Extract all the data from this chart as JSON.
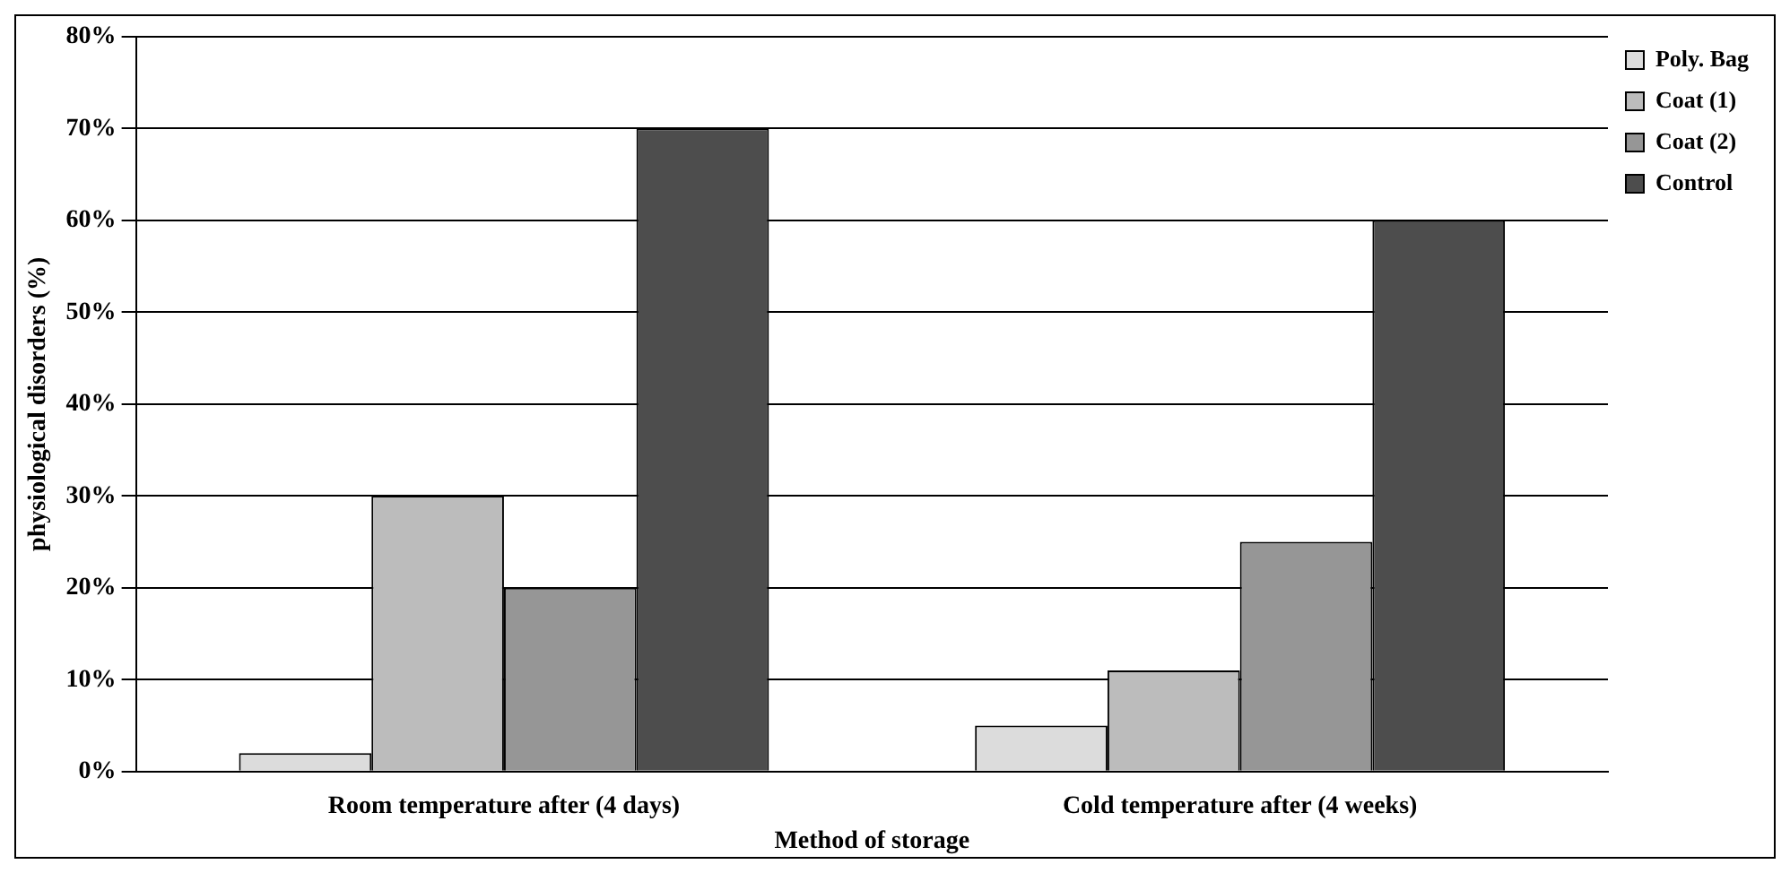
{
  "chart_data": {
    "type": "bar",
    "xlabel": "Method of storage",
    "ylabel": "physiological disorders (%)",
    "categories": [
      "Room temperature after (4 days)",
      "Cold temperature after (4 weeks)"
    ],
    "series": [
      {
        "name": "Poly. Bag",
        "color": "#dcdcdc",
        "values": [
          2,
          5
        ]
      },
      {
        "name": "Coat (1)",
        "color": "#bcbcbc",
        "values": [
          30,
          11
        ]
      },
      {
        "name": "Coat (2)",
        "color": "#969696",
        "values": [
          20,
          25
        ]
      },
      {
        "name": "Control",
        "color": "#4d4d4d",
        "values": [
          70,
          60
        ]
      }
    ],
    "ylim": [
      0,
      80
    ],
    "yticks": [
      {
        "value": 0,
        "label": "0%"
      },
      {
        "value": 10,
        "label": "10%"
      },
      {
        "value": 20,
        "label": "20%"
      },
      {
        "value": 30,
        "label": "30%"
      },
      {
        "value": 40,
        "label": "40%"
      },
      {
        "value": 50,
        "label": "50%"
      },
      {
        "value": 60,
        "label": "60%"
      },
      {
        "value": 70,
        "label": "70%"
      },
      {
        "value": 80,
        "label": "80%"
      }
    ],
    "grid": "y",
    "legend": "top right"
  }
}
